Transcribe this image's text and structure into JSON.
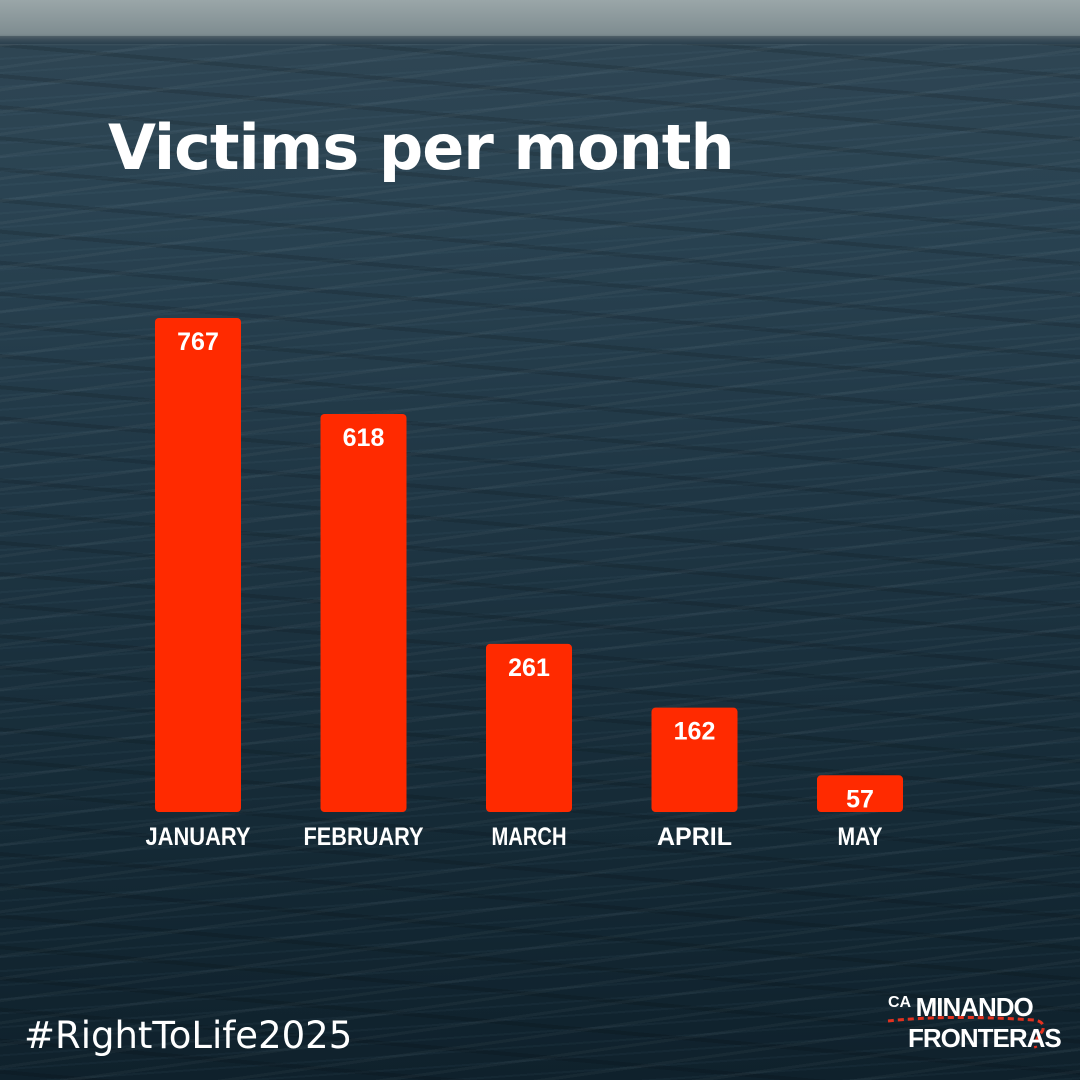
{
  "chart_data": {
    "type": "bar",
    "title": "Victims per month",
    "categories": [
      "JANUARY",
      "FEBRUARY",
      "MARCH",
      "APRIL",
      "MAY"
    ],
    "values": [
      767,
      618,
      261,
      162,
      57
    ],
    "ylim": [
      0,
      767
    ],
    "grid": false,
    "bar_color": "#ff2a00"
  },
  "footer": {
    "hashtag": "#RightToLife2025"
  },
  "logo": {
    "prefix": "CA",
    "line1": "MINANDO",
    "line2": "FRONTERAS"
  }
}
